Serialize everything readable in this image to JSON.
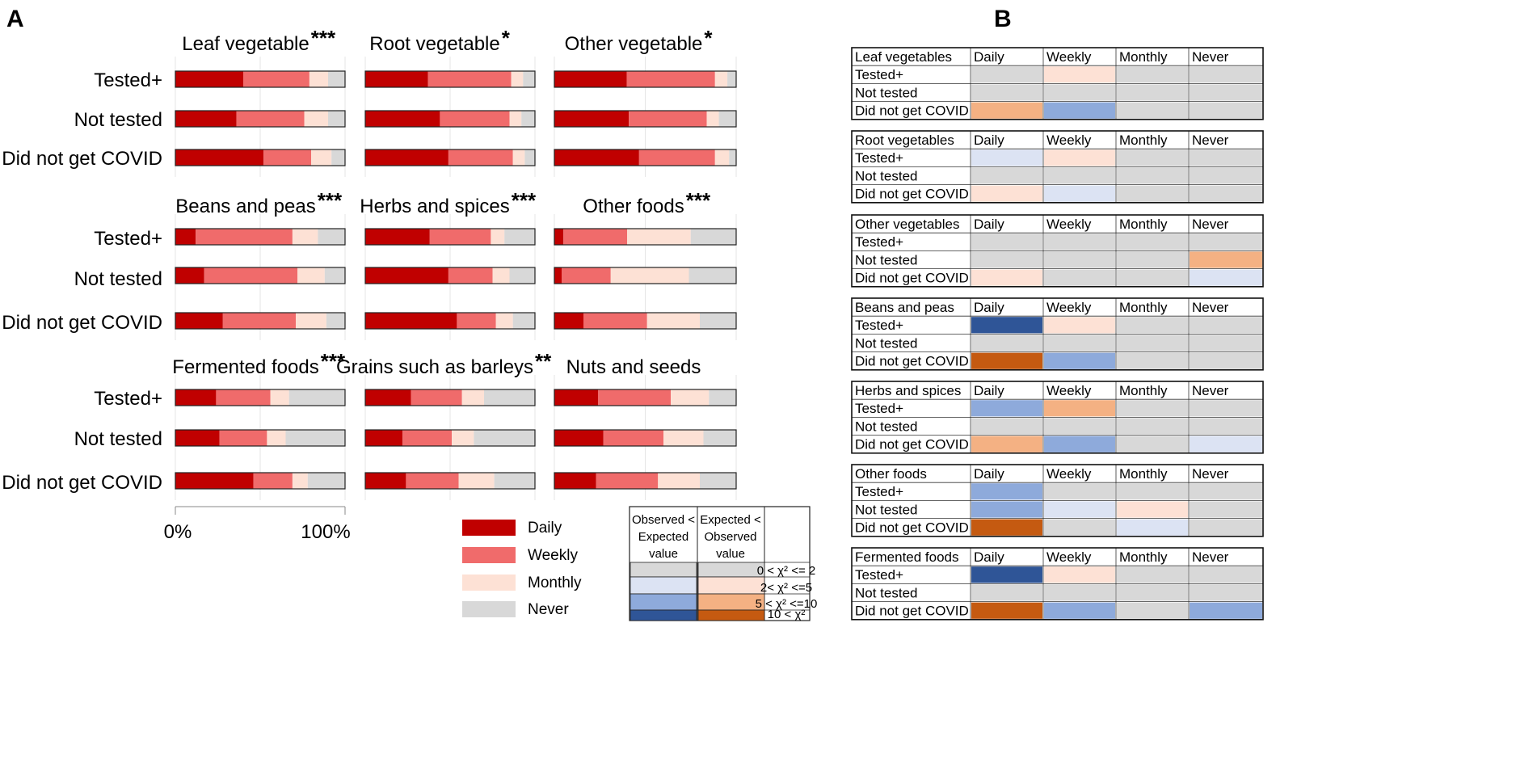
{
  "panel_letters": [
    "A",
    "B"
  ],
  "colors": {
    "Daily": "#c00000",
    "Weekly": "#f06b6b",
    "Monthly": "#fde1d5",
    "Never": "#d8d8d8"
  },
  "chart_data": {
    "type": "bar",
    "orientation": "horizontal",
    "stacked": true,
    "percent": true,
    "row_labels": [
      "Tested+",
      "Not tested",
      "Did not get COVID"
    ],
    "levels": [
      "Daily",
      "Weekly",
      "Monthly",
      "Never"
    ],
    "axis": {
      "ticks": [
        "0%",
        "100%"
      ],
      "range": [
        0,
        100
      ]
    },
    "panels": [
      {
        "title": "Leaf vegetable",
        "sig": "***",
        "rows": [
          [
            40,
            39,
            11,
            10
          ],
          [
            36,
            40,
            14,
            10
          ],
          [
            52,
            28,
            12,
            8
          ]
        ]
      },
      {
        "title": "Root vegetable",
        "sig": "*",
        "rows": [
          [
            37,
            49,
            7,
            7
          ],
          [
            44,
            41,
            7,
            8
          ],
          [
            49,
            38,
            7,
            6
          ]
        ]
      },
      {
        "title": "Other vegetable",
        "sig": "*",
        "rows": [
          [
            41,
            50,
            7,
            5
          ],
          [
            43,
            45,
            7,
            10
          ],
          [
            48,
            43,
            8,
            4
          ]
        ]
      },
      {
        "title": "Beans and peas",
        "sig": "***",
        "rows": [
          [
            12,
            57,
            15,
            16
          ],
          [
            17,
            55,
            16,
            12
          ],
          [
            28,
            43,
            18,
            11
          ]
        ]
      },
      {
        "title": "Herbs and spices",
        "sig": "***",
        "rows": [
          [
            38,
            36,
            8,
            18
          ],
          [
            49,
            26,
            10,
            15
          ],
          [
            54,
            23,
            10,
            13
          ]
        ]
      },
      {
        "title": "Other foods",
        "sig": "***",
        "rows": [
          [
            5,
            35,
            35,
            25
          ],
          [
            4,
            27,
            43,
            26
          ],
          [
            16,
            35,
            29,
            20
          ]
        ]
      },
      {
        "title": "Fermented foods",
        "sig": "***",
        "rows": [
          [
            24,
            32,
            11,
            33
          ],
          [
            26,
            28,
            11,
            35
          ],
          [
            46,
            23,
            9,
            22
          ]
        ]
      },
      {
        "title": "Grains such as barleys",
        "sig": "**",
        "rows": [
          [
            27,
            30,
            13,
            30
          ],
          [
            22,
            29,
            13,
            36
          ],
          [
            24,
            31,
            21,
            24
          ]
        ]
      },
      {
        "title": "Nuts and seeds",
        "sig": "",
        "rows": [
          [
            24,
            40,
            21,
            15
          ],
          [
            27,
            33,
            22,
            18
          ],
          [
            23,
            34,
            23,
            20
          ]
        ]
      }
    ]
  },
  "legend": {
    "items": [
      "Daily",
      "Weekly",
      "Monthly",
      "Never"
    ]
  },
  "key": {
    "col1": [
      "Observed <",
      "Expected",
      "value"
    ],
    "col2": [
      "Expected <",
      "Observed",
      "value"
    ],
    "ranges": [
      "0 < χ² <= 2",
      "2< χ² <=5",
      "5 < χ² <=10",
      "10 < χ²"
    ],
    "blues": [
      "#d8d8d8",
      "#dce3f3",
      "#8eaadb",
      "#2f5597"
    ],
    "oranges": [
      "#d8d8d8",
      "#fde1d5",
      "#f4b183",
      "#c55a11"
    ]
  },
  "tables": {
    "header": [
      "Daily",
      "Weekly",
      "Monthly",
      "Never"
    ],
    "row_labels": [
      "Tested+",
      "Not tested",
      "Did not get COVID"
    ],
    "cell_colors": {
      "g": "#d8d8d8",
      "b1": "#dce3f3",
      "b2": "#8eaadb",
      "b3": "#2f5597",
      "o1": "#fde1d5",
      "o2": "#f4b183",
      "o3": "#c55a11"
    },
    "items": [
      {
        "title": "Leaf vegetables",
        "cells": [
          [
            "g",
            "o1",
            "g",
            "g"
          ],
          [
            "g",
            "g",
            "g",
            "g"
          ],
          [
            "o2",
            "b2",
            "g",
            "g"
          ]
        ]
      },
      {
        "title": "Root vegetables",
        "cells": [
          [
            "b1",
            "o1",
            "g",
            "g"
          ],
          [
            "g",
            "g",
            "g",
            "g"
          ],
          [
            "o1",
            "b1",
            "g",
            "g"
          ]
        ]
      },
      {
        "title": "Other vegetables",
        "cells": [
          [
            "g",
            "g",
            "g",
            "g"
          ],
          [
            "g",
            "g",
            "g",
            "o2"
          ],
          [
            "o1",
            "g",
            "g",
            "b1"
          ]
        ]
      },
      {
        "title": "Beans and peas",
        "cells": [
          [
            "b3",
            "o1",
            "g",
            "g"
          ],
          [
            "g",
            "g",
            "g",
            "g"
          ],
          [
            "o3",
            "b2",
            "g",
            "g"
          ]
        ]
      },
      {
        "title": "Herbs and spices",
        "cells": [
          [
            "b2",
            "o2",
            "g",
            "g"
          ],
          [
            "g",
            "g",
            "g",
            "g"
          ],
          [
            "o2",
            "b2",
            "g",
            "b1"
          ]
        ]
      },
      {
        "title": "Other foods",
        "cells": [
          [
            "b2",
            "g",
            "g",
            "g"
          ],
          [
            "b2",
            "b1",
            "o1",
            "g"
          ],
          [
            "o3",
            "g",
            "b1",
            "g"
          ]
        ]
      },
      {
        "title": "Fermented foods",
        "cells": [
          [
            "b3",
            "o1",
            "g",
            "g"
          ],
          [
            "g",
            "g",
            "g",
            "g"
          ],
          [
            "o3",
            "b2",
            "g",
            "b2"
          ]
        ]
      }
    ]
  }
}
